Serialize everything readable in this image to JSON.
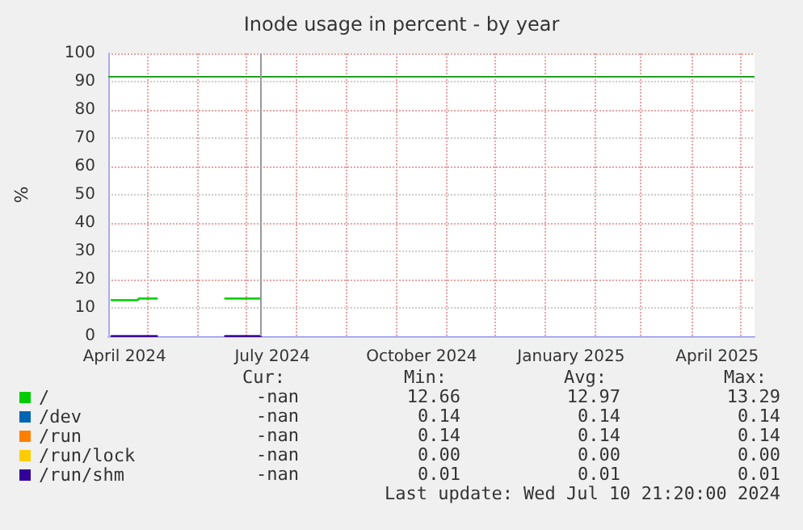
{
  "chart_data": {
    "type": "line",
    "title": "Inode usage in percent - by year",
    "ylabel": "%",
    "xlim": [
      "2024-04-07",
      "2025-05-10"
    ],
    "ylim": [
      0,
      100
    ],
    "yticks": [
      0,
      10,
      20,
      30,
      40,
      50,
      60,
      70,
      80,
      90,
      100
    ],
    "xticks": [
      {
        "value": "2024-04-17",
        "label": "April 2024"
      },
      {
        "value": "2024-05-01",
        "label": null
      },
      {
        "value": "2024-06-01",
        "label": null
      },
      {
        "value": "2024-07-01",
        "label": null
      },
      {
        "value": "2024-07-17",
        "label": "July 2024"
      },
      {
        "value": "2024-08-01",
        "label": null
      },
      {
        "value": "2024-09-01",
        "label": null
      },
      {
        "value": "2024-10-01",
        "label": null
      },
      {
        "value": "2024-10-17",
        "label": "October 2024"
      },
      {
        "value": "2024-11-01",
        "label": null
      },
      {
        "value": "2024-12-01",
        "label": null
      },
      {
        "value": "2025-01-01",
        "label": null
      },
      {
        "value": "2025-01-17",
        "label": "January 2025"
      },
      {
        "value": "2025-02-01",
        "label": null
      },
      {
        "value": "2025-03-01",
        "label": null
      },
      {
        "value": "2025-04-01",
        "label": null
      },
      {
        "value": "2025-04-17",
        "label": "April 2025"
      },
      {
        "value": "2025-05-01",
        "label": null
      }
    ],
    "x": [
      "2024-04-09",
      "2024-04-25",
      "2024-04-26",
      "2024-05-07",
      "2024-05-20",
      "2024-06-18",
      "2024-07-10"
    ],
    "series": [
      {
        "name": "/",
        "color": "#00cc00",
        "values": [
          12.7,
          12.7,
          13.3,
          13.3,
          null,
          13.3,
          13.3
        ]
      },
      {
        "name": "/dev",
        "color": "#0066b3",
        "values": [
          null,
          null,
          null,
          null,
          null,
          null,
          null
        ]
      },
      {
        "name": "/run",
        "color": "#ff8000",
        "values": [
          null,
          null,
          null,
          null,
          null,
          null,
          null
        ]
      },
      {
        "name": "/run/lock",
        "color": "#ffcc00",
        "values": [
          null,
          null,
          null,
          null,
          null,
          null,
          null
        ]
      },
      {
        "name": "/run/shm",
        "color": "#330099",
        "values": [
          0,
          0,
          0,
          0,
          null,
          0,
          0
        ]
      }
    ],
    "ref_lines": [
      {
        "axis": "y",
        "value": 92,
        "label": null,
        "color": "#22a022"
      },
      {
        "axis": "x",
        "value": "2024-07-10",
        "label": null,
        "color": "#999999"
      }
    ],
    "annotations": [
      "Cur:",
      "Min:",
      "Avg:",
      "Max:",
      "-nan",
      "12.66",
      "12.97",
      "13.29",
      "-nan",
      "0.14",
      "0.14",
      "0.14",
      "-nan",
      "0.14",
      "0.14",
      "0.14",
      "-nan",
      "0.00",
      "0.00",
      "0.00",
      "-nan",
      "0.01",
      "0.01",
      "0.01",
      "Last update: Wed Jul 10 21:20:00 2024"
    ],
    "grid": true,
    "legend": "bottom",
    "marker": "none",
    "line_style": "solid"
  }
}
